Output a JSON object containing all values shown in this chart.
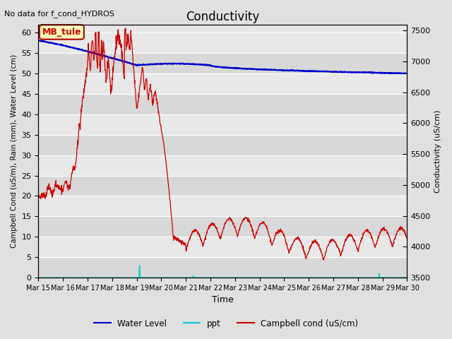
{
  "title": "Conductivity",
  "top_left_text": "No data for f_cond_HYDROS",
  "ylabel_left": "Campbell Cond (uS/m), Rain (mm), Water Level (cm)",
  "ylabel_right": "Conductivity (uS/cm)",
  "xlabel": "Time",
  "ylim_left": [
    0,
    62
  ],
  "ylim_right": [
    3500,
    7600
  ],
  "x_tick_labels": [
    "Mar 15",
    "Mar 16",
    "Mar 17",
    "Mar 18",
    "Mar 19",
    "Mar 20",
    "Mar 21",
    "Mar 22",
    "Mar 23",
    "Mar 24",
    "Mar 25",
    "Mar 26",
    "Mar 27",
    "Mar 28",
    "Mar 29",
    "Mar 30"
  ],
  "bg_color": "#e0e0e0",
  "plot_bg_color": "#e8e8e8",
  "grid_color": "#ffffff",
  "annotation_box": {
    "text": "MB_tule",
    "fontsize": 9,
    "facecolor": "#ffffbb",
    "edgecolor": "#aa0000"
  },
  "water_level_color": "#0000cc",
  "ppt_color": "#00cccc",
  "campbell_color": "#cc0000",
  "legend_labels": [
    "Water Level",
    "ppt",
    "Campbell cond (uS/cm)"
  ]
}
